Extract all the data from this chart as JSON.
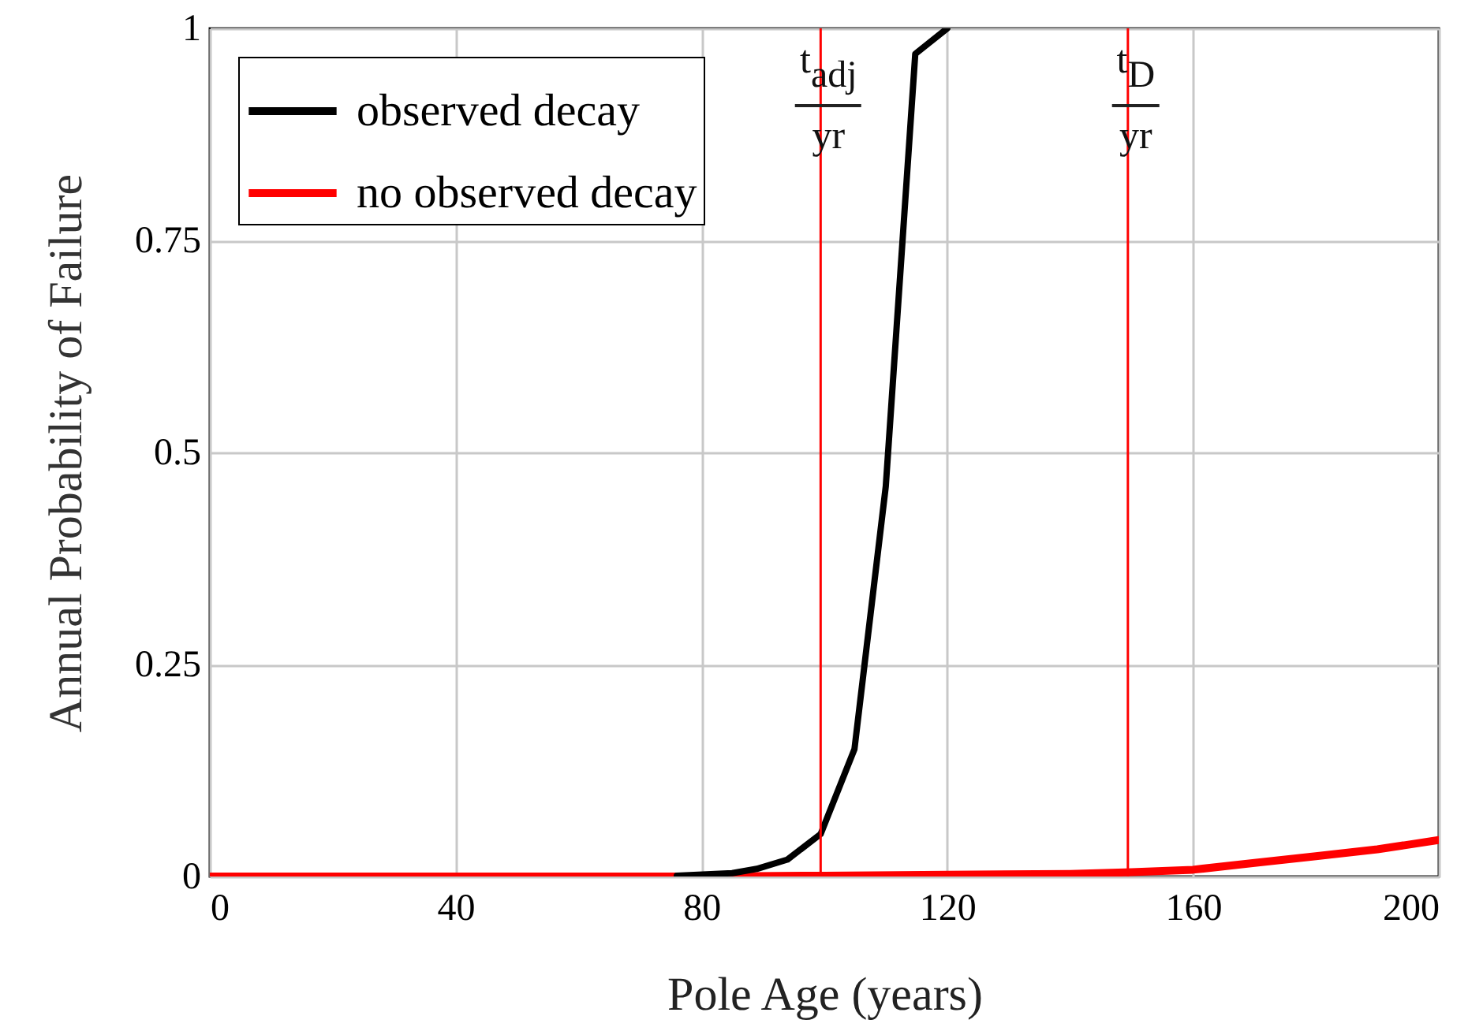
{
  "chart_data": {
    "type": "line",
    "xlabel": "Pole Age (years)",
    "ylabel": "Annual Probability of Failure",
    "xlim": [
      0,
      200
    ],
    "ylim": [
      0,
      1
    ],
    "xticks": [
      0,
      40,
      80,
      120,
      160,
      200
    ],
    "yticks": [
      0,
      0.25,
      0.5,
      0.75,
      1
    ],
    "grid": true,
    "legend": "top left",
    "line_style": "solid",
    "series": [
      {
        "name": "observed decay",
        "color": "#000000",
        "x": [
          76,
          85,
          89,
          94,
          99.4,
          104.9,
          110,
          114.8,
          120
        ],
        "values": [
          0.001,
          0.004,
          0.009,
          0.02,
          0.05,
          0.15,
          0.46,
          0.97,
          1
        ]
      },
      {
        "name": "no observed decay",
        "color": "#ff0000",
        "x": [
          0,
          40,
          80,
          100,
          120,
          140,
          150,
          160,
          170,
          180,
          190,
          200
        ],
        "values": [
          0,
          0,
          0,
          0.001,
          0.002,
          0.003,
          0.005,
          0.008,
          0.016,
          0.024,
          0.032,
          0.043
        ]
      }
    ],
    "ref_lines": [
      {
        "axis": "x",
        "value": 99.4,
        "label": "t$_{adj}$\nyr",
        "color": "#ff0000"
      },
      {
        "axis": "x",
        "value": 149.4,
        "label": "t$_{D}$\nyr",
        "color": "#ff0000"
      }
    ]
  }
}
